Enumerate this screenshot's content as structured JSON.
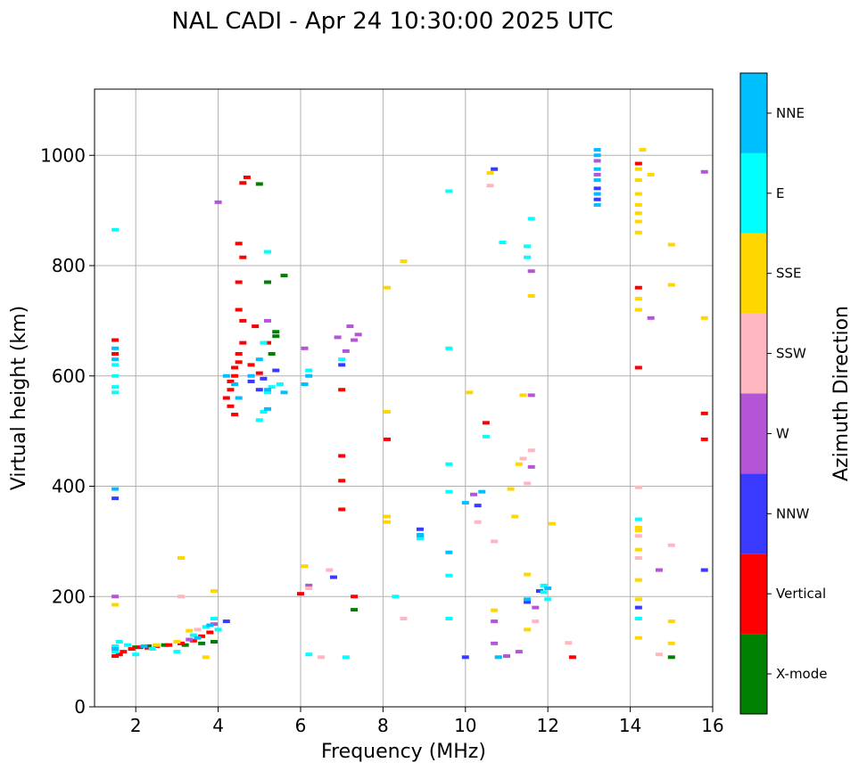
{
  "chart_data": {
    "type": "scatter",
    "title": "NAL CADI - Apr 24 10:30:00 2025 UTC",
    "xlabel": "Frequency (MHz)",
    "ylabel": "Virtual height (km)",
    "xlim": [
      1,
      16
    ],
    "ylim": [
      0,
      1120
    ],
    "xticks": [
      2,
      4,
      6,
      8,
      10,
      12,
      14,
      16
    ],
    "yticks": [
      0,
      200,
      400,
      600,
      800,
      1000
    ],
    "grid": true,
    "colorbar": {
      "label": "Azimuth Direction",
      "categories": [
        "X-mode",
        "Vertical",
        "NNW",
        "W",
        "SSW",
        "SSE",
        "E",
        "NNE"
      ],
      "colors": [
        "#008000",
        "#ff0000",
        "#3a3aff",
        "#b455d8",
        "#ffb6c1",
        "#ffd700",
        "#00ffff",
        "#00bfff"
      ]
    },
    "series": [
      {
        "name": "X-mode",
        "points": [
          [
            2.0,
            108
          ],
          [
            2.3,
            110
          ],
          [
            2.7,
            112
          ],
          [
            3.2,
            112
          ],
          [
            3.6,
            115
          ],
          [
            3.9,
            118
          ],
          [
            5.0,
            948
          ],
          [
            5.4,
            672
          ],
          [
            5.4,
            680
          ],
          [
            5.6,
            782
          ],
          [
            5.2,
            770
          ],
          [
            5.3,
            640
          ],
          [
            7.3,
            176
          ],
          [
            15.0,
            90
          ]
        ]
      },
      {
        "name": "Vertical",
        "points": [
          [
            1.5,
            92
          ],
          [
            1.6,
            95
          ],
          [
            1.7,
            100
          ],
          [
            1.9,
            105
          ],
          [
            2.1,
            108
          ],
          [
            2.3,
            107
          ],
          [
            2.5,
            110
          ],
          [
            2.8,
            112
          ],
          [
            3.1,
            115
          ],
          [
            3.4,
            120
          ],
          [
            3.6,
            128
          ],
          [
            3.8,
            135
          ],
          [
            4.2,
            560
          ],
          [
            4.3,
            575
          ],
          [
            4.3,
            590
          ],
          [
            4.4,
            600
          ],
          [
            4.4,
            615
          ],
          [
            4.5,
            625
          ],
          [
            4.3,
            545
          ],
          [
            4.4,
            530
          ],
          [
            4.5,
            640
          ],
          [
            4.6,
            660
          ],
          [
            4.6,
            700
          ],
          [
            4.5,
            720
          ],
          [
            4.5,
            770
          ],
          [
            4.6,
            815
          ],
          [
            4.5,
            840
          ],
          [
            4.6,
            950
          ],
          [
            4.7,
            960
          ],
          [
            4.8,
            620
          ],
          [
            5.0,
            605
          ],
          [
            4.9,
            690
          ],
          [
            5.2,
            660
          ],
          [
            6.0,
            205
          ],
          [
            7.0,
            575
          ],
          [
            7.0,
            455
          ],
          [
            7.0,
            410
          ],
          [
            7.0,
            358
          ],
          [
            7.3,
            200
          ],
          [
            8.1,
            485
          ],
          [
            10.5,
            515
          ],
          [
            12.6,
            90
          ],
          [
            14.2,
            760
          ],
          [
            14.2,
            985
          ],
          [
            14.2,
            615
          ],
          [
            15.8,
            485
          ],
          [
            15.8,
            532
          ],
          [
            1.5,
            640
          ],
          [
            1.5,
            665
          ]
        ]
      },
      {
        "name": "NNW",
        "points": [
          [
            4.2,
            155
          ],
          [
            4.8,
            590
          ],
          [
            5.0,
            575
          ],
          [
            5.1,
            595
          ],
          [
            5.4,
            610
          ],
          [
            6.8,
            235
          ],
          [
            7.0,
            620
          ],
          [
            8.9,
            322
          ],
          [
            8.9,
            310
          ],
          [
            10.0,
            90
          ],
          [
            10.3,
            365
          ],
          [
            10.7,
            975
          ],
          [
            11.5,
            190
          ],
          [
            11.8,
            210
          ],
          [
            14.2,
            180
          ],
          [
            15.8,
            248
          ],
          [
            13.2,
            920
          ],
          [
            13.2,
            940
          ],
          [
            1.5,
            378
          ]
        ]
      },
      {
        "name": "W",
        "points": [
          [
            1.5,
            200
          ],
          [
            3.3,
            122
          ],
          [
            3.9,
            150
          ],
          [
            4.0,
            915
          ],
          [
            5.2,
            700
          ],
          [
            6.1,
            650
          ],
          [
            6.2,
            220
          ],
          [
            6.9,
            670
          ],
          [
            7.1,
            645
          ],
          [
            7.2,
            690
          ],
          [
            7.3,
            665
          ],
          [
            7.4,
            675
          ],
          [
            10.2,
            385
          ],
          [
            10.7,
            155
          ],
          [
            10.7,
            115
          ],
          [
            11.0,
            92
          ],
          [
            11.3,
            100
          ],
          [
            11.6,
            435
          ],
          [
            11.6,
            565
          ],
          [
            11.6,
            790
          ],
          [
            11.7,
            180
          ],
          [
            14.5,
            705
          ],
          [
            14.7,
            248
          ],
          [
            15.8,
            970
          ],
          [
            13.2,
            965
          ],
          [
            13.2,
            990
          ]
        ]
      },
      {
        "name": "SSW",
        "points": [
          [
            3.1,
            200
          ],
          [
            3.5,
            140
          ],
          [
            6.2,
            215
          ],
          [
            6.5,
            90
          ],
          [
            6.7,
            248
          ],
          [
            8.5,
            160
          ],
          [
            10.3,
            335
          ],
          [
            10.7,
            300
          ],
          [
            11.4,
            450
          ],
          [
            11.5,
            405
          ],
          [
            11.6,
            465
          ],
          [
            11.7,
            155
          ],
          [
            12.5,
            116
          ],
          [
            14.2,
            398
          ],
          [
            14.2,
            270
          ],
          [
            14.2,
            310
          ],
          [
            14.7,
            95
          ],
          [
            15.0,
            293
          ],
          [
            10.6,
            945
          ]
        ]
      },
      {
        "name": "SSE",
        "points": [
          [
            1.5,
            185
          ],
          [
            2.5,
            112
          ],
          [
            3.0,
            118
          ],
          [
            3.1,
            270
          ],
          [
            3.3,
            138
          ],
          [
            3.7,
            90
          ],
          [
            3.9,
            210
          ],
          [
            6.1,
            255
          ],
          [
            8.1,
            760
          ],
          [
            8.1,
            535
          ],
          [
            8.1,
            345
          ],
          [
            8.1,
            335
          ],
          [
            8.5,
            808
          ],
          [
            10.1,
            570
          ],
          [
            10.6,
            968
          ],
          [
            10.7,
            175
          ],
          [
            10.8,
            90
          ],
          [
            11.1,
            395
          ],
          [
            11.2,
            345
          ],
          [
            11.3,
            440
          ],
          [
            11.4,
            565
          ],
          [
            11.5,
            240
          ],
          [
            11.5,
            140
          ],
          [
            11.6,
            745
          ],
          [
            12.1,
            332
          ],
          [
            14.2,
            125
          ],
          [
            14.2,
            195
          ],
          [
            14.2,
            230
          ],
          [
            14.2,
            285
          ],
          [
            14.2,
            320
          ],
          [
            14.2,
            325
          ],
          [
            14.2,
            720
          ],
          [
            14.2,
            740
          ],
          [
            14.2,
            860
          ],
          [
            14.2,
            880
          ],
          [
            14.2,
            895
          ],
          [
            14.2,
            910
          ],
          [
            14.2,
            930
          ],
          [
            14.2,
            955
          ],
          [
            14.2,
            975
          ],
          [
            14.3,
            1010
          ],
          [
            14.5,
            965
          ],
          [
            15.0,
            838
          ],
          [
            15.0,
            765
          ],
          [
            15.0,
            155
          ],
          [
            15.0,
            115
          ],
          [
            15.8,
            705
          ]
        ]
      },
      {
        "name": "E",
        "points": [
          [
            1.5,
            110
          ],
          [
            1.5,
            100
          ],
          [
            1.6,
            118
          ],
          [
            1.8,
            112
          ],
          [
            2.0,
            95
          ],
          [
            2.4,
            105
          ],
          [
            3.0,
            100
          ],
          [
            3.4,
            130
          ],
          [
            3.7,
            145
          ],
          [
            3.9,
            160
          ],
          [
            4.0,
            140
          ],
          [
            5.0,
            520
          ],
          [
            5.1,
            535
          ],
          [
            5.2,
            570
          ],
          [
            5.3,
            580
          ],
          [
            5.5,
            585
          ],
          [
            5.1,
            660
          ],
          [
            5.2,
            825
          ],
          [
            6.2,
            610
          ],
          [
            6.2,
            95
          ],
          [
            7.0,
            630
          ],
          [
            7.1,
            90
          ],
          [
            8.3,
            200
          ],
          [
            8.9,
            305
          ],
          [
            9.6,
            650
          ],
          [
            9.6,
            440
          ],
          [
            9.6,
            390
          ],
          [
            9.6,
            238
          ],
          [
            9.6,
            160
          ],
          [
            10.5,
            490
          ],
          [
            10.9,
            842
          ],
          [
            11.5,
            835
          ],
          [
            11.5,
            815
          ],
          [
            11.6,
            885
          ],
          [
            11.9,
            220
          ],
          [
            11.9,
            208
          ],
          [
            12.0,
            195
          ],
          [
            14.2,
            340
          ],
          [
            14.2,
            160
          ],
          [
            9.6,
            935
          ],
          [
            1.5,
            865
          ],
          [
            1.5,
            600
          ],
          [
            1.5,
            620
          ],
          [
            1.5,
            580
          ],
          [
            1.5,
            570
          ]
        ]
      },
      {
        "name": "NNE",
        "points": [
          [
            1.5,
            105
          ],
          [
            1.5,
            395
          ],
          [
            1.5,
            650
          ],
          [
            1.5,
            630
          ],
          [
            2.2,
            110
          ],
          [
            3.5,
            125
          ],
          [
            3.8,
            148
          ],
          [
            4.2,
            600
          ],
          [
            4.4,
            585
          ],
          [
            4.5,
            560
          ],
          [
            4.8,
            600
          ],
          [
            5.0,
            630
          ],
          [
            5.2,
            540
          ],
          [
            5.2,
            575
          ],
          [
            5.6,
            570
          ],
          [
            6.2,
            600
          ],
          [
            6.1,
            585
          ],
          [
            8.9,
            312
          ],
          [
            9.6,
            280
          ],
          [
            10.0,
            370
          ],
          [
            10.4,
            390
          ],
          [
            10.8,
            90
          ],
          [
            11.5,
            195
          ],
          [
            12.0,
            215
          ],
          [
            13.2,
            1010
          ],
          [
            13.2,
            1000
          ],
          [
            13.2,
            975
          ],
          [
            13.2,
            955
          ],
          [
            13.2,
            930
          ],
          [
            13.2,
            910
          ]
        ]
      }
    ]
  }
}
